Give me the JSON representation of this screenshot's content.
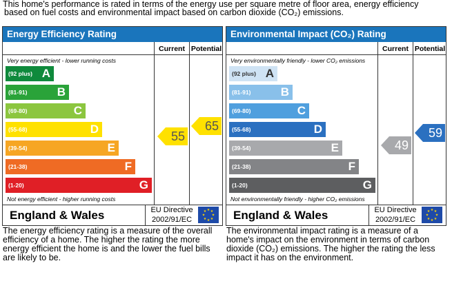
{
  "intro": {
    "line1": "This home's performance is rated in terms of the energy use per square metre of floor area, energy efficiency",
    "line2": "based on fuel costs and environmental impact based on carbon dioxide (CO₂) emissions."
  },
  "energy": {
    "title": "Energy Efficiency Rating",
    "current_label": "Current",
    "potential_label": "Potential",
    "top_caption": "Very energy efficient - lower running costs",
    "bottom_caption": "Not energy efficient - higher running costs",
    "bands": [
      {
        "range": "(92 plus)",
        "letter": "A",
        "color": "#0f8a3c"
      },
      {
        "range": "(81-91)",
        "letter": "B",
        "color": "#2aa339"
      },
      {
        "range": "(69-80)",
        "letter": "C",
        "color": "#8cc63f"
      },
      {
        "range": "(55-68)",
        "letter": "D",
        "color": "#ffe100"
      },
      {
        "range": "(39-54)",
        "letter": "E",
        "color": "#f6a623"
      },
      {
        "range": "(21-38)",
        "letter": "F",
        "color": "#ef6b24"
      },
      {
        "range": "(1-20)",
        "letter": "G",
        "color": "#e01f26"
      }
    ],
    "current_value": "55",
    "potential_value": "65",
    "current_color": "#ffe100",
    "potential_color": "#ffe100",
    "footer_region": "England & Wales",
    "directive_line1": "EU Directive",
    "directive_line2": "2002/91/EC",
    "description": "The energy efficiency rating is a measure of the overall efficiency of a home. The higher the rating the more energy efficient the home is and the lower the fuel bills are likely to be."
  },
  "environment": {
    "title": "Environmental Impact (CO₂) Rating",
    "current_label": "Current",
    "potential_label": "Potential",
    "top_caption": "Very environmentally friendly - lower CO₂ emissions",
    "bottom_caption": "Not environmentally friendly - higher CO₂ emissions",
    "bands": [
      {
        "range": "(92 plus)",
        "letter": "A",
        "color": "#cfe3f4"
      },
      {
        "range": "(81-91)",
        "letter": "B",
        "color": "#89c0ea"
      },
      {
        "range": "(69-80)",
        "letter": "C",
        "color": "#4f9fde"
      },
      {
        "range": "(55-68)",
        "letter": "D",
        "color": "#2b70c0"
      },
      {
        "range": "(39-54)",
        "letter": "E",
        "color": "#a8a9ac"
      },
      {
        "range": "(21-38)",
        "letter": "F",
        "color": "#838487"
      },
      {
        "range": "(1-20)",
        "letter": "G",
        "color": "#5d5e60"
      }
    ],
    "current_value": "49",
    "potential_value": "59",
    "current_color": "#a8a9ac",
    "potential_color": "#2b70c0",
    "footer_region": "England & Wales",
    "directive_line1": "EU Directive",
    "directive_line2": "2002/91/EC",
    "description": "The environmental impact rating is a measure of a home's impact on the environment in terms of carbon dioxide (CO₂) emissions. The higher the rating the less impact it has on the environment."
  }
}
